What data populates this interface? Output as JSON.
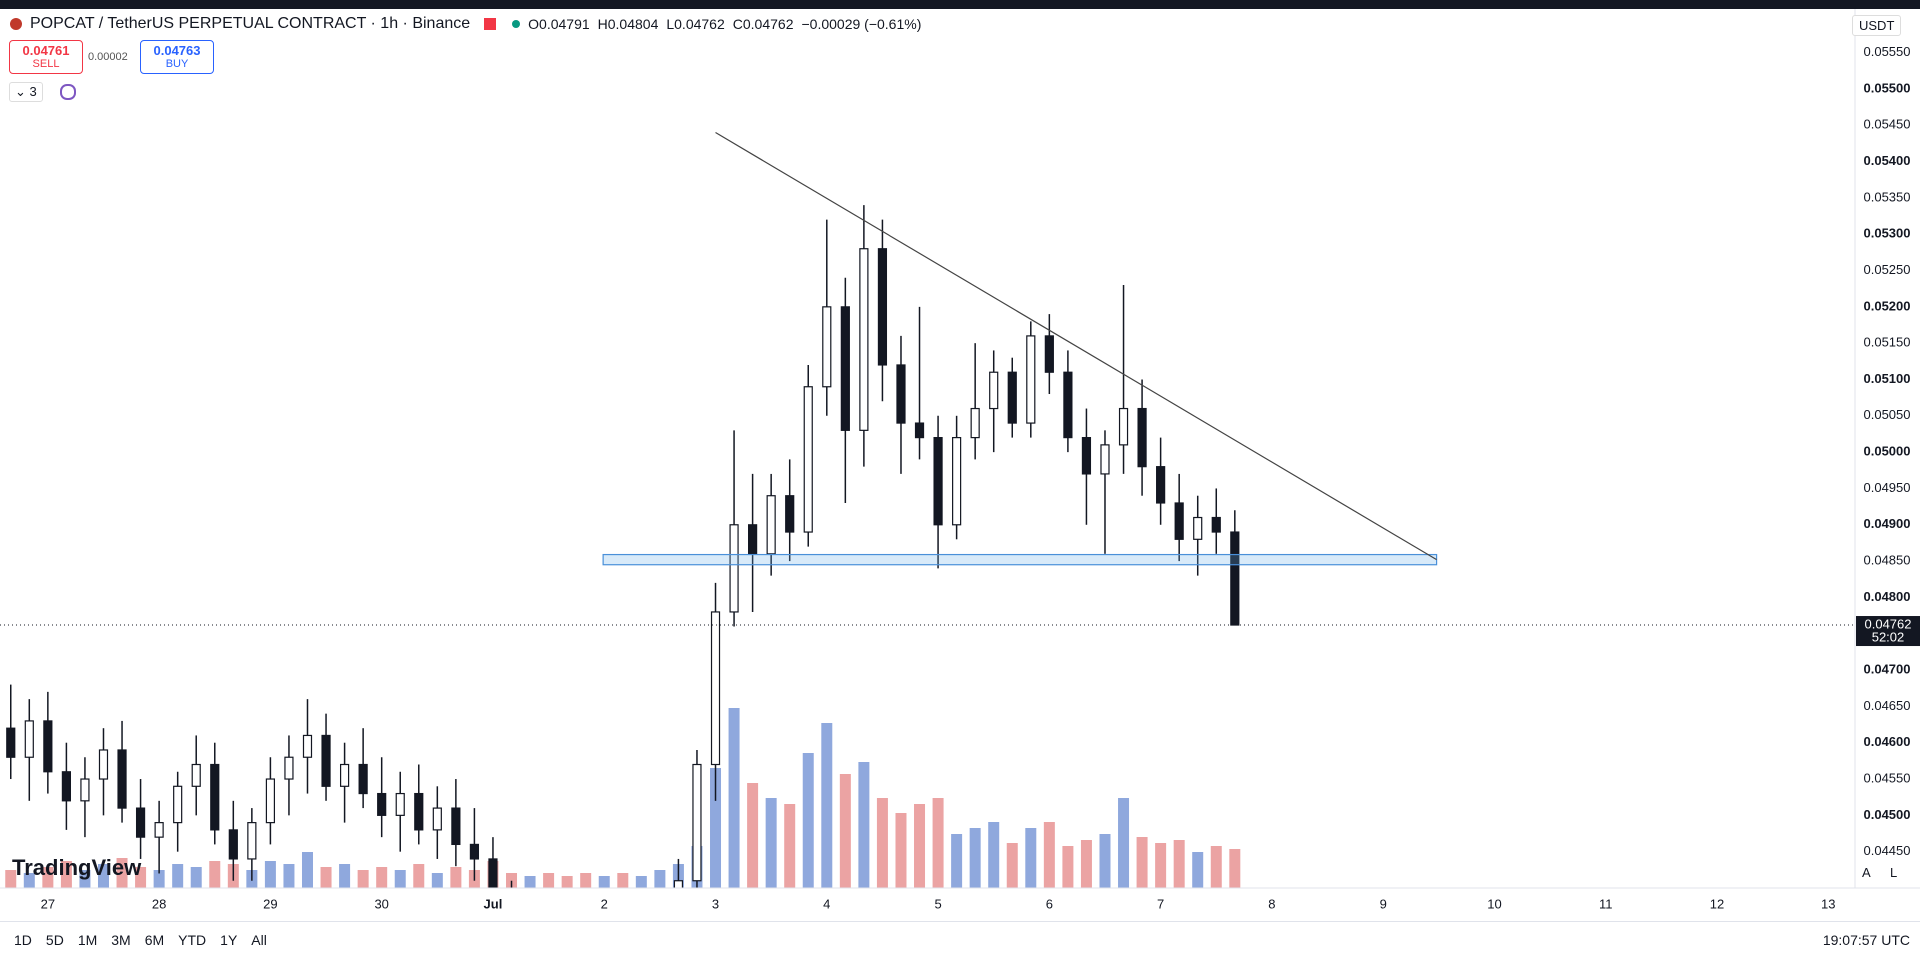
{
  "header": {
    "title": "POPCAT / TetherUS PERPETUAL CONTRACT · 1h · Binance",
    "open": "O0.04791",
    "high": "H0.04804",
    "low": "L0.04762",
    "close": "C0.04762",
    "change": "−0.00029 (−0.61%)",
    "sell_price": "0.04761",
    "sell": "SELL",
    "spread": "0.00002",
    "buy_price": "0.04763",
    "buy": "BUY",
    "indicators": "3",
    "currency": "USDT"
  },
  "toolbar": {
    "ranges": [
      "1D",
      "5D",
      "1M",
      "3M",
      "6M",
      "YTD",
      "1Y",
      "All"
    ],
    "time": "19:07:57 UTC",
    "auto": "A",
    "log": "L",
    "logo": "TradingView"
  },
  "chart_data": {
    "type": "candlestick",
    "color": "#131722",
    "up_volume_color": "#8fa8dd",
    "down_volume_color": "#eba3a3",
    "grid": true,
    "last_price_label": "0.04762",
    "countdown": "52:02",
    "xlim": [
      -0.43,
      16.24
    ],
    "ylim": [
      0.044,
      0.0561
    ],
    "xticks": [
      {
        "value": 0,
        "label": "27"
      },
      {
        "value": 1,
        "label": "28"
      },
      {
        "value": 2,
        "label": "29"
      },
      {
        "value": 3,
        "label": "30"
      },
      {
        "value": 4,
        "label": "Jul"
      },
      {
        "value": 5,
        "label": "2"
      },
      {
        "value": 6,
        "label": "3"
      },
      {
        "value": 7,
        "label": "4"
      },
      {
        "value": 8,
        "label": "5"
      },
      {
        "value": 9,
        "label": "6"
      },
      {
        "value": 10,
        "label": "7"
      },
      {
        "value": 11,
        "label": "8"
      },
      {
        "value": 12,
        "label": "9"
      },
      {
        "value": 13,
        "label": "10"
      },
      {
        "value": 14,
        "label": "11"
      },
      {
        "value": 15,
        "label": "12"
      },
      {
        "value": 16,
        "label": "13"
      }
    ],
    "yticks": [
      {
        "value": 0.0445,
        "label": "0.04450"
      },
      {
        "value": 0.045,
        "label": "0.04500"
      },
      {
        "value": 0.0455,
        "label": "0.04550"
      },
      {
        "value": 0.046,
        "label": "0.04600"
      },
      {
        "value": 0.0465,
        "label": "0.04650"
      },
      {
        "value": 0.047,
        "label": "0.04700"
      },
      {
        "value": 0.0475,
        "label": "0.04750"
      },
      {
        "value": 0.048,
        "label": "0.04800"
      },
      {
        "value": 0.0485,
        "label": "0.04850"
      },
      {
        "value": 0.049,
        "label": "0.04900"
      },
      {
        "value": 0.0495,
        "label": "0.04950"
      },
      {
        "value": 0.05,
        "label": "0.05000"
      },
      {
        "value": 0.0505,
        "label": "0.05050"
      },
      {
        "value": 0.051,
        "label": "0.05100"
      },
      {
        "value": 0.0515,
        "label": "0.05150"
      },
      {
        "value": 0.052,
        "label": "0.05200"
      },
      {
        "value": 0.0525,
        "label": "0.05250"
      },
      {
        "value": 0.053,
        "label": "0.05300"
      },
      {
        "value": 0.0535,
        "label": "0.05350"
      },
      {
        "value": 0.054,
        "label": "0.05400"
      },
      {
        "value": 0.0545,
        "label": "0.05450"
      },
      {
        "value": 0.055,
        "label": "0.05500"
      },
      {
        "value": 0.0555,
        "label": "0.05550"
      }
    ],
    "x": [
      -0.3333,
      -0.1667,
      0,
      0.1667,
      0.3333,
      0.5,
      0.6667,
      0.8333,
      1,
      1.1667,
      1.3333,
      1.5,
      1.6667,
      1.8333,
      2,
      2.1667,
      2.3333,
      2.5,
      2.6667,
      2.8333,
      3,
      3.1667,
      3.3333,
      3.5,
      3.6667,
      3.8333,
      4,
      4.1667,
      4.3333,
      4.5,
      4.6667,
      4.8333,
      5,
      5.1667,
      5.3333,
      5.5,
      5.6667,
      5.8333,
      6,
      6.1667,
      6.3333,
      6.5,
      6.6667,
      6.8333,
      7,
      7.1667,
      7.3333,
      7.5,
      7.6667,
      7.8333,
      8,
      8.1667,
      8.3333,
      8.5,
      8.6667,
      8.8333,
      9,
      9.1667,
      9.3333,
      9.5,
      9.6667,
      9.8333,
      10,
      10.1667,
      10.3333,
      10.5,
      10.6667
    ],
    "open": [
      0.0462,
      0.0458,
      0.0463,
      0.0456,
      0.0452,
      0.0455,
      0.0459,
      0.0451,
      0.0447,
      0.0449,
      0.0454,
      0.0457,
      0.0448,
      0.0444,
      0.0449,
      0.0455,
      0.0458,
      0.0461,
      0.0454,
      0.0457,
      0.0453,
      0.045,
      0.0453,
      0.0448,
      0.0451,
      0.0446,
      0.0444,
      0.0438,
      0.0435,
      0.0436,
      0.0434,
      0.0433,
      0.0432,
      0.0434,
      0.0433,
      0.0435,
      0.0436,
      0.0441,
      0.0457,
      0.0478,
      0.049,
      0.0486,
      0.0494,
      0.0489,
      0.0509,
      0.052,
      0.0503,
      0.0528,
      0.0512,
      0.0504,
      0.0502,
      0.049,
      0.0502,
      0.0506,
      0.0511,
      0.0504,
      0.0516,
      0.0511,
      0.0502,
      0.0497,
      0.0501,
      0.0506,
      0.0498,
      0.0493,
      0.0488,
      0.0491,
      0.0489
    ],
    "high": [
      0.0468,
      0.0466,
      0.0467,
      0.046,
      0.0458,
      0.0462,
      0.0463,
      0.0455,
      0.0452,
      0.0456,
      0.0461,
      0.046,
      0.0452,
      0.0451,
      0.0458,
      0.0461,
      0.0466,
      0.0464,
      0.046,
      0.0462,
      0.0458,
      0.0456,
      0.0457,
      0.0454,
      0.0455,
      0.0451,
      0.0447,
      0.0441,
      0.0439,
      0.044,
      0.0438,
      0.0437,
      0.0436,
      0.0438,
      0.0437,
      0.0439,
      0.0444,
      0.0459,
      0.0482,
      0.0503,
      0.0497,
      0.0497,
      0.0499,
      0.0512,
      0.0532,
      0.0524,
      0.0534,
      0.0532,
      0.0516,
      0.052,
      0.0505,
      0.0505,
      0.0515,
      0.0514,
      0.0513,
      0.0518,
      0.0519,
      0.0514,
      0.0506,
      0.0503,
      0.0523,
      0.051,
      0.0502,
      0.0497,
      0.0494,
      0.0495,
      0.0492
    ],
    "low": [
      0.0455,
      0.0452,
      0.0453,
      0.0448,
      0.0447,
      0.045,
      0.0449,
      0.0444,
      0.0442,
      0.0445,
      0.045,
      0.0446,
      0.0441,
      0.0441,
      0.0446,
      0.045,
      0.0453,
      0.0452,
      0.0449,
      0.0451,
      0.0447,
      0.0445,
      0.0446,
      0.0444,
      0.0443,
      0.0441,
      0.0436,
      0.0433,
      0.0431,
      0.0432,
      0.043,
      0.0429,
      0.0428,
      0.043,
      0.0429,
      0.0431,
      0.0433,
      0.0439,
      0.0452,
      0.0476,
      0.0478,
      0.0483,
      0.0485,
      0.0487,
      0.0505,
      0.0493,
      0.0498,
      0.0507,
      0.0497,
      0.0499,
      0.0484,
      0.0488,
      0.0499,
      0.05,
      0.0502,
      0.0502,
      0.0508,
      0.05,
      0.049,
      0.0486,
      0.0497,
      0.0494,
      0.049,
      0.0485,
      0.0483,
      0.0486,
      0.04762
    ],
    "close": [
      0.0458,
      0.0463,
      0.0456,
      0.0452,
      0.0455,
      0.0459,
      0.0451,
      0.0447,
      0.0449,
      0.0454,
      0.0457,
      0.0448,
      0.0444,
      0.0449,
      0.0455,
      0.0458,
      0.0461,
      0.0454,
      0.0457,
      0.0453,
      0.045,
      0.0453,
      0.0448,
      0.0451,
      0.0446,
      0.0444,
      0.0438,
      0.0435,
      0.0436,
      0.0434,
      0.0433,
      0.0432,
      0.0434,
      0.0433,
      0.0435,
      0.0436,
      0.0441,
      0.0457,
      0.0478,
      0.049,
      0.0486,
      0.0494,
      0.0489,
      0.0509,
      0.052,
      0.0503,
      0.0528,
      0.0512,
      0.0504,
      0.0502,
      0.049,
      0.0502,
      0.0506,
      0.0511,
      0.0504,
      0.0516,
      0.0511,
      0.0502,
      0.0497,
      0.0501,
      0.0506,
      0.0498,
      0.0493,
      0.0488,
      0.0491,
      0.0489,
      0.04762
    ],
    "volume": [
      6,
      5,
      7,
      9,
      6,
      8,
      10,
      7,
      6,
      8,
      7,
      9,
      8,
      6,
      9,
      8,
      12,
      7,
      8,
      6,
      7,
      6,
      8,
      5,
      7,
      6,
      9,
      5,
      4,
      5,
      4,
      5,
      4,
      5,
      4,
      6,
      8,
      14,
      40,
      60,
      35,
      30,
      28,
      45,
      55,
      38,
      42,
      30,
      25,
      28,
      30,
      18,
      20,
      22,
      15,
      20,
      22,
      14,
      16,
      18,
      30,
      17,
      15,
      16,
      12,
      14,
      13
    ],
    "trendline": {
      "x": [
        6.0,
        12.48
      ],
      "y": [
        0.0544,
        0.04852
      ]
    },
    "zone": {
      "x": [
        4.99,
        12.48
      ],
      "y": [
        0.04845,
        0.04859
      ]
    }
  }
}
